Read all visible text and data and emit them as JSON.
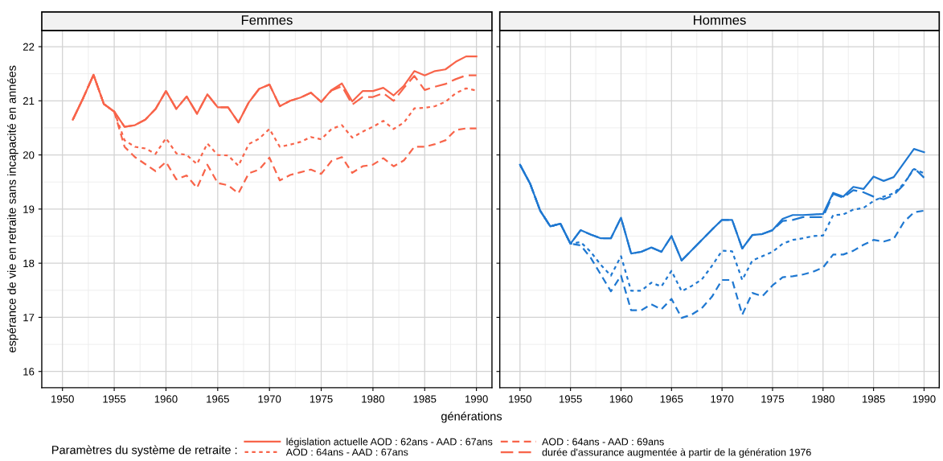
{
  "chart_data": [
    {
      "type": "line",
      "title": "Femmes",
      "ylabel": "espérance de vie en retraite sans incapacité en années",
      "xlabel": "générations",
      "legend_title": "Paramètres du système de retraite :",
      "legend": "bottom",
      "grid": true,
      "xlim": [
        1948,
        1991.5
      ],
      "xticks": [
        1950,
        1955,
        1960,
        1965,
        1970,
        1975,
        1980,
        1985,
        1990
      ],
      "ylim": [
        15.7,
        22.3
      ],
      "yticks": [
        16,
        17,
        18,
        19,
        20,
        21,
        22
      ],
      "x": [
        1951,
        1952,
        1953,
        1954,
        1955,
        1956,
        1957,
        1958,
        1959,
        1960,
        1961,
        1962,
        1963,
        1964,
        1965,
        1966,
        1967,
        1968,
        1969,
        1970,
        1971,
        1972,
        1973,
        1974,
        1975,
        1976,
        1977,
        1978,
        1979,
        1980,
        1981,
        1982,
        1983,
        1984,
        1985,
        1986,
        1987,
        1988,
        1989,
        1990
      ],
      "series": [
        {
          "name": "législation actuelle AOD : 62ans - AAD : 67ans",
          "color": "#f8644a",
          "line_style": "solid",
          "values": [
            20.65,
            21.05,
            21.48,
            20.94,
            20.8,
            20.52,
            20.55,
            20.65,
            20.85,
            21.18,
            20.85,
            21.08,
            20.76,
            21.12,
            20.88,
            20.88,
            20.6,
            20.97,
            21.22,
            21.3,
            20.9,
            21.0,
            21.06,
            21.15,
            20.98,
            21.2,
            21.32,
            20.99,
            21.18,
            21.18,
            21.24,
            21.1,
            21.28,
            21.55,
            21.47,
            21.55,
            21.58,
            21.72,
            21.82,
            21.82
          ]
        },
        {
          "name": "AOD : 64ans - AAD : 67ans",
          "color": "#f8644a",
          "line_style": "dotted",
          "values": [
            20.65,
            21.05,
            21.48,
            20.94,
            20.8,
            20.27,
            20.15,
            20.12,
            20.02,
            20.31,
            20.03,
            20.0,
            19.83,
            20.21,
            20.0,
            19.99,
            19.8,
            20.2,
            20.3,
            20.48,
            20.15,
            20.19,
            20.24,
            20.33,
            20.29,
            20.48,
            20.55,
            20.32,
            20.43,
            20.52,
            20.63,
            20.48,
            20.6,
            20.86,
            20.87,
            20.9,
            20.98,
            21.14,
            21.23,
            21.19
          ]
        },
        {
          "name": "AOD : 64ans - AAD : 69ans",
          "color": "#f8644a",
          "line_style": "dashed",
          "values": [
            20.65,
            21.05,
            21.48,
            20.94,
            20.8,
            20.15,
            19.96,
            19.83,
            19.7,
            19.87,
            19.55,
            19.62,
            19.39,
            19.82,
            19.48,
            19.44,
            19.29,
            19.66,
            19.73,
            19.95,
            19.53,
            19.63,
            19.68,
            19.73,
            19.65,
            19.89,
            19.96,
            19.67,
            19.79,
            19.82,
            19.94,
            19.79,
            19.9,
            20.15,
            20.15,
            20.2,
            20.27,
            20.46,
            20.49,
            20.49
          ]
        },
        {
          "name": "durée d'assurance augmentée à partir de la génération 1976",
          "color": "#f8644a",
          "line_style": "longdash",
          "values": [
            20.65,
            21.05,
            21.48,
            20.94,
            20.8,
            20.52,
            20.55,
            20.65,
            20.85,
            21.18,
            20.85,
            21.08,
            20.76,
            21.12,
            20.88,
            20.88,
            20.6,
            20.97,
            21.22,
            21.3,
            20.9,
            21.0,
            21.06,
            21.15,
            20.98,
            21.19,
            21.27,
            20.93,
            21.07,
            21.07,
            21.14,
            21.0,
            21.24,
            21.46,
            21.2,
            21.26,
            21.31,
            21.4,
            21.47,
            21.47
          ]
        }
      ]
    },
    {
      "type": "line",
      "title": "Hommes",
      "grid": true,
      "tick_labels": "x",
      "xlim": [
        1948,
        1991.5
      ],
      "xticks": [
        1950,
        1955,
        1960,
        1965,
        1970,
        1975,
        1980,
        1985,
        1990
      ],
      "ylim": [
        15.7,
        22.3
      ],
      "yticks": [
        16,
        17,
        18,
        19,
        20,
        21,
        22
      ],
      "x": [
        1950,
        1951,
        1952,
        1953,
        1954,
        1955,
        1956,
        1957,
        1958,
        1959,
        1960,
        1961,
        1962,
        1963,
        1964,
        1965,
        1966,
        1967,
        1968,
        1969,
        1970,
        1971,
        1972,
        1973,
        1974,
        1975,
        1976,
        1977,
        1978,
        1979,
        1980,
        1981,
        1982,
        1983,
        1984,
        1985,
        1986,
        1987,
        1988,
        1989,
        1990
      ],
      "series": [
        {
          "color": "#1f78d1",
          "line_style": "solid",
          "values": [
            19.82,
            19.47,
            18.97,
            18.68,
            18.73,
            18.36,
            18.61,
            18.53,
            18.46,
            18.46,
            18.84,
            18.18,
            18.21,
            18.29,
            18.21,
            18.5,
            18.05,
            18.24,
            18.43,
            18.62,
            18.8,
            18.8,
            18.27,
            18.52,
            18.54,
            18.61,
            18.82,
            18.89,
            18.89,
            18.9,
            18.91,
            19.3,
            19.23,
            19.41,
            19.37,
            19.6,
            19.52,
            19.59,
            19.85,
            20.11,
            20.05
          ]
        },
        {
          "color": "#1f78d1",
          "line_style": "dotted",
          "values": [
            19.82,
            19.47,
            18.97,
            18.68,
            18.73,
            18.36,
            18.39,
            18.21,
            17.97,
            17.77,
            18.13,
            17.49,
            17.49,
            17.64,
            17.57,
            17.86,
            17.48,
            17.58,
            17.7,
            17.95,
            18.23,
            18.22,
            17.69,
            18.05,
            18.13,
            18.21,
            18.36,
            18.43,
            18.46,
            18.5,
            18.51,
            18.89,
            18.9,
            18.99,
            19.02,
            19.15,
            19.23,
            19.29,
            19.47,
            19.74,
            19.66
          ]
        },
        {
          "color": "#1f78d1",
          "line_style": "dashed",
          "values": [
            19.82,
            19.47,
            18.97,
            18.68,
            18.73,
            18.36,
            18.33,
            18.1,
            17.79,
            17.48,
            17.77,
            17.13,
            17.13,
            17.24,
            17.15,
            17.34,
            16.99,
            17.05,
            17.17,
            17.38,
            17.69,
            17.69,
            17.05,
            17.45,
            17.39,
            17.59,
            17.74,
            17.76,
            17.79,
            17.84,
            17.92,
            18.16,
            18.16,
            18.23,
            18.34,
            18.43,
            18.4,
            18.45,
            18.76,
            18.94,
            18.97
          ]
        },
        {
          "color": "#1f78d1",
          "line_style": "longdash",
          "values": [
            19.82,
            19.47,
            18.97,
            18.68,
            18.73,
            18.36,
            18.61,
            18.53,
            18.46,
            18.46,
            18.84,
            18.18,
            18.21,
            18.29,
            18.21,
            18.5,
            18.05,
            18.24,
            18.43,
            18.62,
            18.8,
            18.8,
            18.27,
            18.52,
            18.54,
            18.61,
            18.78,
            18.8,
            18.85,
            18.85,
            18.85,
            19.28,
            19.21,
            19.35,
            19.31,
            19.23,
            19.18,
            19.26,
            19.45,
            19.76,
            19.58
          ]
        }
      ]
    }
  ]
}
